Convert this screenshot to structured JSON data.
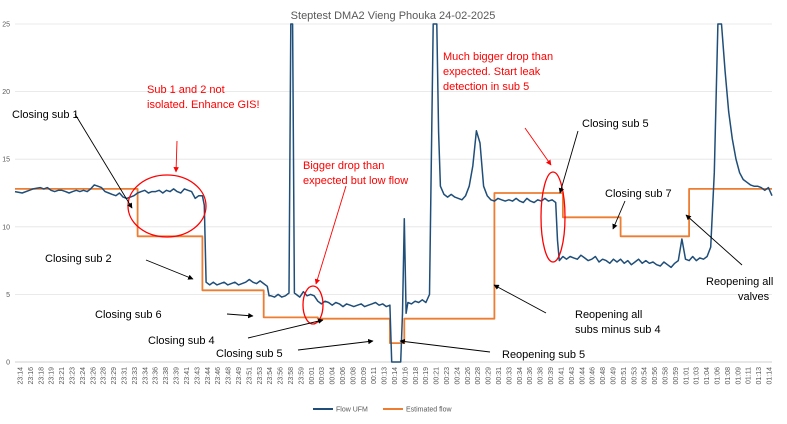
{
  "chart_data": {
    "type": "line",
    "title": "Steptest DMA2 Vieng Phouka 24-02-2025",
    "ylim": [
      0,
      25
    ],
    "y_ticks": [
      "0",
      "5",
      "10",
      "15",
      "20",
      "25"
    ],
    "grid": "horizontal",
    "legend_placement": "bottom",
    "x_ticks": [
      "23:14",
      "23:16",
      "23:18",
      "23:19",
      "23:21",
      "23:23",
      "23:24",
      "23:26",
      "23:28",
      "23:29",
      "23:31",
      "23:33",
      "23:34",
      "23:36",
      "23:38",
      "23:39",
      "23:41",
      "23:43",
      "23:44",
      "23:46",
      "23:48",
      "23:49",
      "23:51",
      "23:53",
      "23:54",
      "23:56",
      "23:58",
      "23:59",
      "00:01",
      "00:03",
      "00:04",
      "00:06",
      "00:08",
      "00:09",
      "00:11",
      "00:13",
      "00:14",
      "00:16",
      "00:18",
      "00:19",
      "00:21",
      "00:23",
      "00:24",
      "00:26",
      "00:28",
      "00:29",
      "00:31",
      "00:33",
      "00:34",
      "00:36",
      "00:38",
      "00:39",
      "00:41",
      "00:43",
      "00:44",
      "00:46",
      "00:48",
      "00:49",
      "00:51",
      "00:53",
      "00:54",
      "00:56",
      "00:58",
      "00:59",
      "01:01",
      "01:03",
      "01:04",
      "01:06",
      "01:08",
      "01:09",
      "01:11",
      "01:13",
      "01:14"
    ],
    "series": [
      {
        "name": "Flow UFM",
        "color": "#1f4e79",
        "points": [
          [
            0,
            12.6
          ],
          [
            2,
            12.5
          ],
          [
            4,
            12.7
          ],
          [
            5,
            12.8
          ],
          [
            7,
            12.9
          ],
          [
            8,
            12.8
          ],
          [
            9,
            12.9
          ],
          [
            10,
            12.7
          ],
          [
            11,
            12.6
          ],
          [
            12,
            12.7
          ],
          [
            13,
            12.7
          ],
          [
            14,
            12.6
          ],
          [
            15,
            12.5
          ],
          [
            16,
            12.6
          ],
          [
            17,
            12.7
          ],
          [
            18,
            12.6
          ],
          [
            19,
            12.7
          ],
          [
            20,
            12.6
          ],
          [
            21,
            12.8
          ],
          [
            22,
            13.1
          ],
          [
            23,
            13.0
          ],
          [
            24,
            12.9
          ],
          [
            25,
            12.6
          ],
          [
            26,
            12.5
          ],
          [
            27,
            12.4
          ],
          [
            28,
            12.3
          ],
          [
            29,
            12.5
          ],
          [
            30,
            12.2
          ],
          [
            31,
            12.1
          ],
          [
            32,
            12.2
          ],
          [
            33,
            12.3
          ],
          [
            34,
            12.5
          ],
          [
            35,
            12.6
          ],
          [
            36,
            12.7
          ],
          [
            37,
            12.5
          ],
          [
            38,
            12.6
          ],
          [
            39,
            12.6
          ],
          [
            40,
            12.7
          ],
          [
            41,
            12.5
          ],
          [
            42,
            12.7
          ],
          [
            43,
            12.6
          ],
          [
            44,
            12.8
          ],
          [
            45,
            12.6
          ],
          [
            46,
            12.5
          ],
          [
            47,
            12.8
          ],
          [
            48,
            12.7
          ],
          [
            49,
            12.6
          ],
          [
            50,
            12.1
          ],
          [
            51,
            12.3
          ],
          [
            52,
            12.3
          ],
          [
            52.5,
            11.6
          ],
          [
            53,
            5.9
          ],
          [
            54,
            5.7
          ],
          [
            55,
            5.9
          ],
          [
            56,
            5.7
          ],
          [
            57,
            5.8
          ],
          [
            58,
            5.9
          ],
          [
            59,
            5.7
          ],
          [
            60,
            5.8
          ],
          [
            61,
            5.9
          ],
          [
            62,
            5.7
          ],
          [
            63,
            5.8
          ],
          [
            64,
            5.9
          ],
          [
            65,
            6.1
          ],
          [
            66,
            5.9
          ],
          [
            67,
            5.8
          ],
          [
            68,
            6.0
          ],
          [
            69,
            5.8
          ],
          [
            70,
            5.6
          ],
          [
            70.5,
            4.9
          ],
          [
            71,
            4.9
          ],
          [
            72,
            4.8
          ],
          [
            73,
            5.0
          ],
          [
            74,
            4.8
          ],
          [
            75,
            4.9
          ],
          [
            76,
            5.1
          ],
          [
            76.5,
            25
          ],
          [
            77,
            25
          ],
          [
            77.5,
            5.1
          ],
          [
            78,
            5.0
          ],
          [
            79,
            4.8
          ],
          [
            80,
            5.2
          ],
          [
            81,
            4.9
          ],
          [
            82,
            5.0
          ],
          [
            83,
            4.9
          ],
          [
            84,
            4.5
          ],
          [
            85,
            4.3
          ],
          [
            86,
            4.5
          ],
          [
            87,
            4.4
          ],
          [
            88,
            4.2
          ],
          [
            89,
            4.4
          ],
          [
            90,
            4.3
          ],
          [
            91,
            4.1
          ],
          [
            92,
            4.3
          ],
          [
            93,
            4.2
          ],
          [
            94,
            4.1
          ],
          [
            95,
            4.2
          ],
          [
            96,
            4.3
          ],
          [
            97,
            4.1
          ],
          [
            98,
            4.2
          ],
          [
            99,
            4.3
          ],
          [
            100,
            4.4
          ],
          [
            101,
            4.2
          ],
          [
            102,
            4.3
          ],
          [
            103,
            4.1
          ],
          [
            104,
            4.2
          ],
          [
            104.5,
            0
          ],
          [
            107,
            0
          ],
          [
            107.5,
            3.6
          ],
          [
            108,
            10.6
          ],
          [
            108.5,
            3.6
          ],
          [
            109,
            4.4
          ],
          [
            110,
            4.3
          ],
          [
            111,
            4.5
          ],
          [
            112,
            4.4
          ],
          [
            113,
            4.6
          ],
          [
            114,
            4.4
          ],
          [
            115,
            5.0
          ],
          [
            116,
            25
          ],
          [
            117,
            25
          ],
          [
            117.5,
            17
          ],
          [
            118,
            13
          ],
          [
            119,
            12.4
          ],
          [
            120,
            12.2
          ],
          [
            121,
            12.4
          ],
          [
            122,
            12.2
          ],
          [
            123,
            12.1
          ],
          [
            124,
            12.0
          ],
          [
            125,
            12.3
          ],
          [
            126,
            13.0
          ],
          [
            127,
            14.5
          ],
          [
            128,
            17.1
          ],
          [
            129,
            16.2
          ],
          [
            130,
            13.0
          ],
          [
            131,
            12.3
          ],
          [
            132,
            12.0
          ],
          [
            133,
            11.9
          ],
          [
            134,
            12.1
          ],
          [
            135,
            12.0
          ],
          [
            136,
            11.9
          ],
          [
            137,
            12.0
          ],
          [
            138,
            11.9
          ],
          [
            139,
            12.1
          ],
          [
            140,
            11.9
          ],
          [
            141,
            11.8
          ],
          [
            142,
            12.1
          ],
          [
            143,
            11.9
          ],
          [
            144,
            11.8
          ],
          [
            145,
            12.0
          ],
          [
            146,
            11.9
          ],
          [
            147,
            12.1
          ],
          [
            148,
            11.9
          ],
          [
            149,
            12.0
          ],
          [
            150,
            11.8
          ],
          [
            150.5,
            9.0
          ],
          [
            151,
            7.5
          ],
          [
            152,
            7.8
          ],
          [
            153,
            7.6
          ],
          [
            154,
            7.8
          ],
          [
            155,
            7.7
          ],
          [
            156,
            7.6
          ],
          [
            157,
            7.9
          ],
          [
            158,
            7.7
          ],
          [
            159,
            7.5
          ],
          [
            160,
            7.6
          ],
          [
            161,
            7.8
          ],
          [
            162,
            7.4
          ],
          [
            163,
            7.6
          ],
          [
            164,
            7.5
          ],
          [
            165,
            7.3
          ],
          [
            166,
            7.6
          ],
          [
            167,
            7.4
          ],
          [
            168,
            7.6
          ],
          [
            169,
            7.3
          ],
          [
            170,
            7.5
          ],
          [
            171,
            7.2
          ],
          [
            172,
            7.4
          ],
          [
            173,
            7.6
          ],
          [
            174,
            7.3
          ],
          [
            175,
            7.5
          ],
          [
            176,
            7.3
          ],
          [
            177,
            7.4
          ],
          [
            178,
            7.2
          ],
          [
            179,
            7.1
          ],
          [
            180,
            7.4
          ],
          [
            181,
            7.2
          ],
          [
            182,
            7.0
          ],
          [
            183,
            7.3
          ],
          [
            184,
            7.5
          ],
          [
            185,
            9.1
          ],
          [
            186,
            7.6
          ],
          [
            187,
            7.5
          ],
          [
            188,
            7.8
          ],
          [
            189,
            7.5
          ],
          [
            190,
            7.7
          ],
          [
            191,
            7.6
          ],
          [
            192,
            7.8
          ],
          [
            193,
            8.5
          ],
          [
            194,
            14.0
          ],
          [
            195,
            25
          ],
          [
            196,
            25
          ],
          [
            197,
            21.5
          ],
          [
            198,
            18.5
          ],
          [
            199,
            16.5
          ],
          [
            200,
            15.0
          ],
          [
            201,
            14.0
          ],
          [
            202,
            13.5
          ],
          [
            203,
            13.3
          ],
          [
            204,
            13.1
          ],
          [
            205,
            13.0
          ],
          [
            206,
            13.0
          ],
          [
            207,
            12.9
          ],
          [
            208,
            12.7
          ],
          [
            209,
            12.9
          ],
          [
            210,
            12.3
          ]
        ]
      },
      {
        "name": "Estimated flow",
        "color": "#ed7d31",
        "points": [
          [
            0,
            12.8
          ],
          [
            34,
            12.8
          ],
          [
            34,
            9.3
          ],
          [
            52,
            9.3
          ],
          [
            52,
            5.3
          ],
          [
            69,
            5.3
          ],
          [
            69,
            3.3
          ],
          [
            84,
            3.3
          ],
          [
            84,
            3.2
          ],
          [
            104,
            3.2
          ],
          [
            104,
            1.4
          ],
          [
            108,
            1.4
          ],
          [
            108,
            3.2
          ],
          [
            133,
            3.2
          ],
          [
            133,
            12.5
          ],
          [
            152,
            12.5
          ],
          [
            152,
            10.7
          ],
          [
            168,
            10.7
          ],
          [
            168,
            9.3
          ],
          [
            187,
            9.3
          ],
          [
            187,
            12.8
          ],
          [
            210,
            12.8
          ]
        ]
      }
    ],
    "annotations": [
      {
        "id": "closing-sub-1",
        "text": "Closing sub 1",
        "color": "#000000"
      },
      {
        "id": "sub-1-2-not-isolated",
        "lines": [
          "Sub 1 and 2 not",
          "isolated. Enhance GIS!"
        ],
        "color": "#ff0000"
      },
      {
        "id": "closing-sub-2",
        "text": "Closing sub 2",
        "color": "#000000"
      },
      {
        "id": "closing-sub-6",
        "text": "Closing sub 6",
        "color": "#000000"
      },
      {
        "id": "closing-sub-4",
        "text": "Closing sub 4",
        "color": "#000000"
      },
      {
        "id": "closing-sub-5-low",
        "text": "Closing sub 5",
        "color": "#000000"
      },
      {
        "id": "bigger-drop",
        "lines": [
          "Bigger drop than",
          "expected but low flow"
        ],
        "color": "#ff0000"
      },
      {
        "id": "reopening-sub-5",
        "text": "Reopening sub 5",
        "color": "#000000"
      },
      {
        "id": "much-bigger-drop",
        "lines": [
          "Much bigger drop than",
          "expected. Start leak",
          "detection in sub 5"
        ],
        "color": "#ff0000"
      },
      {
        "id": "closing-sub-5-high",
        "text": "Closing sub 5",
        "color": "#000000"
      },
      {
        "id": "reopening-all-subs",
        "lines": [
          "Reopening all",
          "subs minus sub 4"
        ],
        "color": "#000000"
      },
      {
        "id": "closing-sub-7",
        "text": "Closing sub 7",
        "color": "#000000"
      },
      {
        "id": "reopening-all-valves",
        "lines": [
          "Reopening all",
          "valves"
        ],
        "color": "#000000"
      }
    ]
  }
}
